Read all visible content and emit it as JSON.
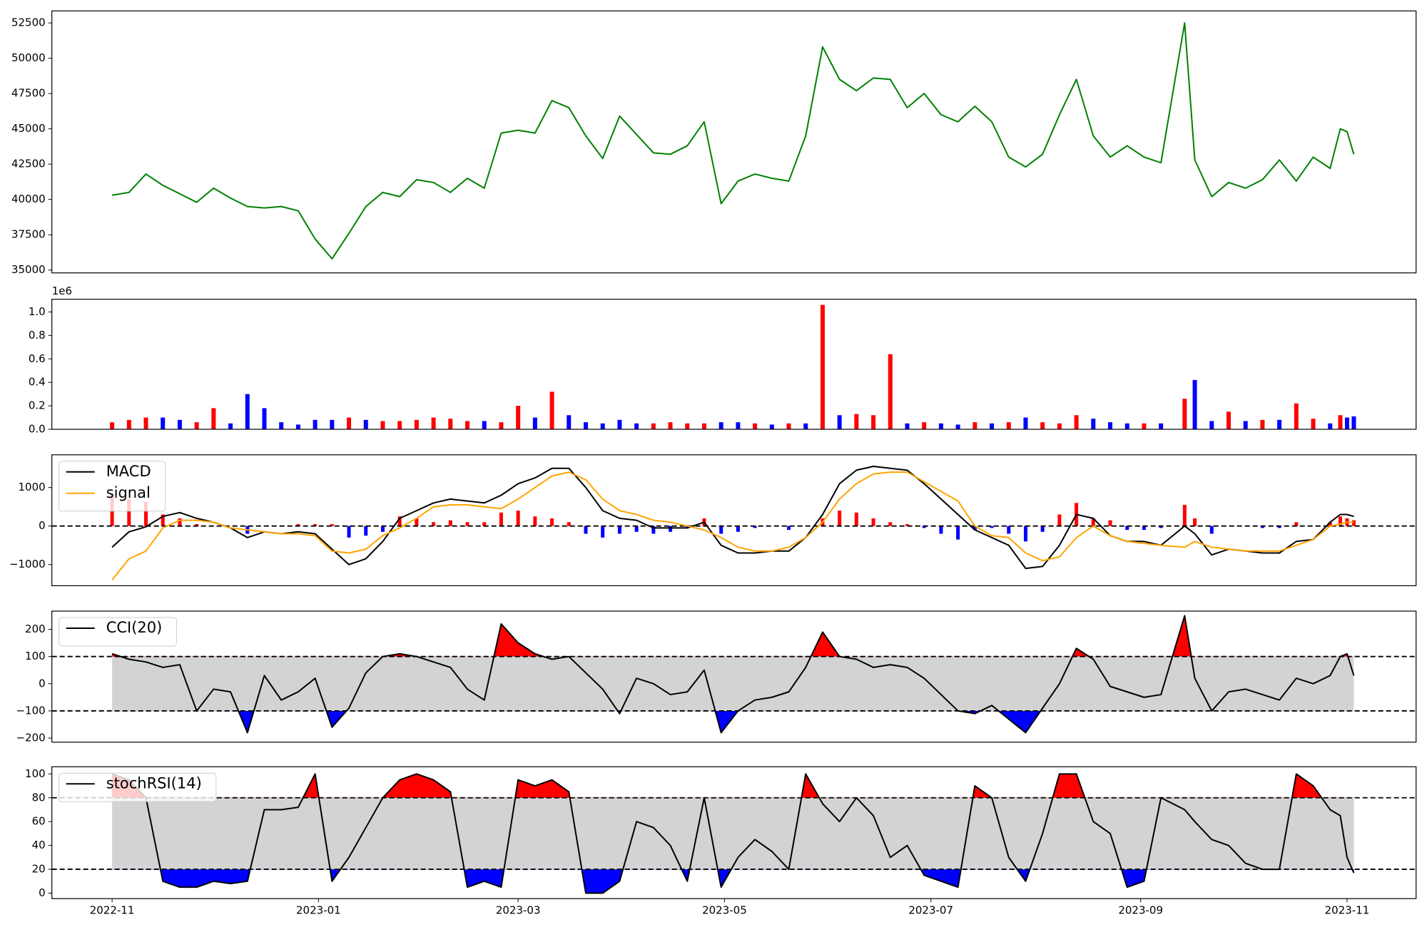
{
  "chart_data": [
    {
      "type": "line",
      "color": "green",
      "x": [
        19297,
        19302,
        19307,
        19312,
        19317,
        19322,
        19327,
        19332,
        19337,
        19342,
        19347,
        19352,
        19357,
        19362,
        19367,
        19372,
        19377,
        19382,
        19387,
        19392,
        19397,
        19402,
        19407,
        19412,
        19417,
        19422,
        19427,
        19432,
        19437,
        19442,
        19447,
        19452,
        19457,
        19462,
        19467,
        19472,
        19477,
        19482,
        19487,
        19492,
        19497,
        19502,
        19507,
        19512,
        19517,
        19522,
        19527,
        19532,
        19537,
        19542,
        19547,
        19552,
        19557,
        19562,
        19567,
        19572,
        19577,
        19582,
        19587,
        19592,
        19597,
        19602,
        19607,
        19614,
        19617,
        19622,
        19627,
        19632,
        19637,
        19642,
        19647,
        19652,
        19657,
        19660,
        19662,
        19664
      ],
      "values": [
        40300,
        40500,
        41800,
        41000,
        40400,
        39800,
        40800,
        40100,
        39500,
        39400,
        39500,
        39200,
        37200,
        35800,
        37600,
        39500,
        40500,
        40200,
        41400,
        41200,
        40500,
        41500,
        40800,
        44700,
        44900,
        44700,
        47000,
        46500,
        44500,
        42900,
        45900,
        44600,
        43300,
        43200,
        43800,
        45500,
        39700,
        41300,
        41800,
        41500,
        41300,
        44500,
        50800,
        48500,
        47700,
        48600,
        48500,
        46500,
        47500,
        46000,
        45500,
        46600,
        45500,
        43000,
        42300,
        43200,
        46000,
        48500,
        44500,
        43000,
        43800,
        43000,
        42600,
        52500,
        42800,
        40200,
        41200,
        40800,
        41400,
        42800,
        41300,
        43000,
        42200,
        45000,
        44800,
        43200
      ],
      "xlim": [
        19279.2,
        19682.4
      ],
      "ylim": [
        34800,
        53350
      ],
      "yticks": [
        35000,
        37500,
        40000,
        42500,
        45000,
        47500,
        50000,
        52500
      ]
    },
    {
      "type": "bar",
      "offset_label": "1e6",
      "x": [
        19297,
        19302,
        19307,
        19312,
        19317,
        19322,
        19327,
        19332,
        19337,
        19342,
        19347,
        19352,
        19357,
        19362,
        19367,
        19372,
        19377,
        19382,
        19387,
        19392,
        19397,
        19402,
        19407,
        19412,
        19417,
        19422,
        19427,
        19432,
        19437,
        19442,
        19447,
        19452,
        19457,
        19462,
        19467,
        19472,
        19477,
        19482,
        19487,
        19492,
        19497,
        19502,
        19507,
        19512,
        19517,
        19522,
        19527,
        19532,
        19537,
        19542,
        19547,
        19552,
        19557,
        19562,
        19567,
        19572,
        19577,
        19582,
        19587,
        19592,
        19597,
        19602,
        19607,
        19614,
        19617,
        19622,
        19627,
        19632,
        19637,
        19642,
        19647,
        19652,
        19657,
        19660,
        19662,
        19664
      ],
      "values": [
        0.06,
        0.08,
        0.1,
        0.1,
        0.08,
        0.06,
        0.18,
        0.05,
        0.3,
        0.18,
        0.06,
        0.04,
        0.08,
        0.08,
        0.1,
        0.08,
        0.07,
        0.07,
        0.08,
        0.1,
        0.09,
        0.07,
        0.07,
        0.06,
        0.2,
        0.1,
        0.32,
        0.12,
        0.06,
        0.05,
        0.08,
        0.05,
        0.05,
        0.06,
        0.05,
        0.05,
        0.06,
        0.06,
        0.05,
        0.04,
        0.05,
        0.05,
        1.06,
        0.12,
        0.13,
        0.12,
        0.64,
        0.05,
        0.06,
        0.05,
        0.04,
        0.06,
        0.05,
        0.06,
        0.1,
        0.06,
        0.05,
        0.12,
        0.09,
        0.06,
        0.05,
        0.05,
        0.05,
        0.26,
        0.42,
        0.07,
        0.15,
        0.07,
        0.08,
        0.08,
        0.22,
        0.09,
        0.05,
        0.12,
        0.1,
        0.11
      ],
      "colors": [
        "red",
        "red",
        "red",
        "blue",
        "blue",
        "red",
        "red",
        "blue",
        "blue",
        "blue",
        "blue",
        "blue",
        "blue",
        "blue",
        "red",
        "blue",
        "red",
        "red",
        "red",
        "red",
        "red",
        "red",
        "blue",
        "red",
        "red",
        "blue",
        "red",
        "blue",
        "blue",
        "blue",
        "blue",
        "blue",
        "red",
        "red",
        "red",
        "red",
        "blue",
        "blue",
        "red",
        "blue",
        "red",
        "blue",
        "red",
        "blue",
        "red",
        "red",
        "red",
        "blue",
        "red",
        "blue",
        "blue",
        "red",
        "blue",
        "red",
        "blue",
        "red",
        "red",
        "red",
        "blue",
        "blue",
        "blue",
        "red",
        "blue",
        "red",
        "blue",
        "blue",
        "red",
        "blue",
        "red",
        "blue",
        "red",
        "red",
        "blue",
        "red",
        "blue",
        "blue"
      ],
      "xlim": [
        19279.2,
        19682.4
      ],
      "ylim": [
        0,
        1.1085
      ],
      "yticks": [
        {
          "value": 0,
          "label": "0.0"
        },
        0.2,
        0.4,
        0.6,
        0.8,
        {
          "value": 1,
          "label": "1.0"
        }
      ]
    },
    {
      "type": "macd",
      "hline": 0,
      "x": [
        19297,
        19302,
        19307,
        19312,
        19317,
        19322,
        19327,
        19332,
        19337,
        19342,
        19347,
        19352,
        19357,
        19362,
        19367,
        19372,
        19377,
        19382,
        19387,
        19392,
        19397,
        19402,
        19407,
        19412,
        19417,
        19422,
        19427,
        19432,
        19437,
        19442,
        19447,
        19452,
        19457,
        19462,
        19467,
        19472,
        19477,
        19482,
        19487,
        19492,
        19497,
        19502,
        19507,
        19512,
        19517,
        19522,
        19527,
        19532,
        19537,
        19542,
        19547,
        19552,
        19557,
        19562,
        19567,
        19572,
        19577,
        19582,
        19587,
        19592,
        19597,
        19602,
        19607,
        19614,
        19617,
        19622,
        19627,
        19632,
        19637,
        19642,
        19647,
        19652,
        19657,
        19660,
        19662,
        19664
      ],
      "series": [
        {
          "name": "MACD",
          "color": "black",
          "values": [
            -550,
            -150,
            -20,
            250,
            350,
            200,
            100,
            -50,
            -300,
            -150,
            -200,
            -150,
            -200,
            -600,
            -1000,
            -850,
            -400,
            200,
            400,
            600,
            700,
            650,
            600,
            800,
            1100,
            1250,
            1500,
            1500,
            1000,
            400,
            200,
            150,
            -50,
            -50,
            -50,
            100,
            -500,
            -700,
            -700,
            -650,
            -650,
            -300,
            300,
            1100,
            1450,
            1550,
            1500,
            1450,
            1100,
            700,
            300,
            -100,
            -300,
            -500,
            -1100,
            -1050,
            -500,
            300,
            200,
            -250,
            -400,
            -400,
            -500,
            0,
            -200,
            -750,
            -600,
            -650,
            -700,
            -700,
            -400,
            -350,
            100,
            300,
            300,
            250
          ]
        },
        {
          "name": "signal",
          "color": "orange",
          "values": [
            -1400,
            -850,
            -650,
            -50,
            150,
            150,
            100,
            -50,
            -100,
            -150,
            -200,
            -200,
            -250,
            -650,
            -700,
            -600,
            -250,
            -50,
            200,
            500,
            550,
            550,
            500,
            450,
            700,
            1000,
            1300,
            1400,
            1200,
            700,
            400,
            300,
            150,
            100,
            0,
            -100,
            -300,
            -550,
            -650,
            -650,
            -550,
            -300,
            100,
            700,
            1100,
            1350,
            1400,
            1400,
            1150,
            900,
            650,
            0,
            -250,
            -300,
            -700,
            -900,
            -800,
            -300,
            0,
            -250,
            -400,
            -450,
            -500,
            -550,
            -400,
            -550,
            -600,
            -650,
            -650,
            -650,
            -500,
            -350,
            0,
            50,
            100,
            100
          ]
        }
      ],
      "histogram": {
        "pos_color": "red",
        "neg_color": "blue",
        "values": [
          850,
          700,
          630,
          300,
          200,
          50,
          0,
          0,
          -200,
          0,
          0,
          50,
          50,
          50,
          -300,
          -250,
          -150,
          250,
          200,
          100,
          150,
          100,
          100,
          350,
          400,
          250,
          200,
          100,
          -200,
          -300,
          -200,
          -150,
          -200,
          -150,
          -50,
          200,
          -200,
          -150,
          -50,
          0,
          -100,
          0,
          200,
          400,
          350,
          200,
          100,
          50,
          -50,
          -200,
          -350,
          -100,
          -50,
          -200,
          -400,
          -150,
          300,
          600,
          200,
          150,
          -100,
          -100,
          -50,
          550,
          200,
          -200,
          0,
          0,
          -50,
          -50,
          100,
          0,
          100,
          250,
          200,
          150
        ]
      },
      "xlim": [
        19279.2,
        19682.4
      ],
      "ylim": [
        -1550,
        1850
      ],
      "yticks": [
        {
          "value": -1000,
          "label": "−1000"
        },
        0,
        1000
      ]
    },
    {
      "type": "oscillator",
      "upper": 100,
      "lower": -100,
      "band_color": "lightgray",
      "above_color": "red",
      "below_color": "blue",
      "x": [
        19297,
        19302,
        19307,
        19312,
        19317,
        19322,
        19327,
        19332,
        19337,
        19342,
        19347,
        19352,
        19357,
        19362,
        19367,
        19372,
        19377,
        19382,
        19387,
        19392,
        19397,
        19402,
        19407,
        19412,
        19417,
        19422,
        19427,
        19432,
        19437,
        19442,
        19447,
        19452,
        19457,
        19462,
        19467,
        19472,
        19477,
        19482,
        19487,
        19492,
        19497,
        19502,
        19507,
        19512,
        19517,
        19522,
        19527,
        19532,
        19537,
        19542,
        19547,
        19552,
        19557,
        19562,
        19567,
        19572,
        19577,
        19582,
        19587,
        19592,
        19597,
        19602,
        19607,
        19614,
        19617,
        19622,
        19627,
        19632,
        19637,
        19642,
        19647,
        19652,
        19657,
        19660,
        19662,
        19664
      ],
      "series": [
        {
          "name": "CCI(20)",
          "color": "black",
          "values": [
            110,
            90,
            80,
            60,
            70,
            -100,
            -20,
            -30,
            -180,
            30,
            -60,
            -30,
            20,
            -160,
            -90,
            40,
            100,
            110,
            100,
            80,
            60,
            -20,
            -60,
            220,
            150,
            110,
            90,
            100,
            40,
            -20,
            -110,
            20,
            0,
            -40,
            -30,
            50,
            -180,
            -100,
            -60,
            -50,
            -30,
            60,
            190,
            100,
            90,
            60,
            70,
            60,
            20,
            -40,
            -100,
            -110,
            -80,
            -130,
            -180,
            -90,
            0,
            130,
            90,
            -10,
            -30,
            -50,
            -40,
            250,
            20,
            -100,
            -30,
            -20,
            -40,
            -60,
            20,
            0,
            30,
            100,
            110,
            30
          ]
        }
      ],
      "xlim": [
        19279.2,
        19682.4
      ],
      "ylim": [
        -215,
        267
      ],
      "yticks": [
        {
          "value": -200,
          "label": "−200"
        },
        {
          "value": -100,
          "label": "−100"
        },
        0,
        100,
        200
      ]
    },
    {
      "type": "oscillator",
      "upper": 80,
      "lower": 20,
      "band_color": "lightgray",
      "above_color": "red",
      "below_color": "blue",
      "x": [
        19297,
        19302,
        19307,
        19312,
        19317,
        19322,
        19327,
        19332,
        19337,
        19342,
        19347,
        19352,
        19357,
        19362,
        19367,
        19372,
        19377,
        19382,
        19387,
        19392,
        19397,
        19402,
        19407,
        19412,
        19417,
        19422,
        19427,
        19432,
        19437,
        19442,
        19447,
        19452,
        19457,
        19462,
        19467,
        19472,
        19477,
        19482,
        19487,
        19492,
        19497,
        19502,
        19507,
        19512,
        19517,
        19522,
        19527,
        19532,
        19537,
        19542,
        19547,
        19552,
        19557,
        19562,
        19567,
        19572,
        19577,
        19582,
        19587,
        19592,
        19597,
        19602,
        19607,
        19614,
        19617,
        19622,
        19627,
        19632,
        19637,
        19642,
        19647,
        19652,
        19657,
        19660,
        19662,
        19664
      ],
      "series": [
        {
          "name": "stochRSI(14)",
          "color": "black",
          "values": [
            100,
            95,
            80,
            10,
            5,
            5,
            10,
            8,
            10,
            70,
            70,
            72,
            100,
            10,
            30,
            55,
            80,
            95,
            100,
            95,
            85,
            5,
            10,
            5,
            95,
            90,
            95,
            85,
            0,
            0,
            10,
            60,
            55,
            40,
            10,
            80,
            5,
            30,
            45,
            35,
            20,
            100,
            75,
            60,
            80,
            65,
            30,
            40,
            15,
            10,
            5,
            90,
            80,
            30,
            10,
            50,
            100,
            100,
            60,
            50,
            5,
            10,
            80,
            70,
            60,
            45,
            40,
            25,
            20,
            20,
            100,
            90,
            70,
            65,
            30,
            17
          ]
        }
      ],
      "xlim": [
        19279.2,
        19682.4
      ],
      "ylim": [
        -4.6,
        106
      ],
      "yticks": [
        0,
        20,
        40,
        60,
        80,
        100
      ],
      "xticks": [
        {
          "value": 19297,
          "label": "2022-11"
        },
        {
          "value": 19358,
          "label": "2023-01"
        },
        {
          "value": 19417,
          "label": "2023-03"
        },
        {
          "value": 19478,
          "label": "2023-05"
        },
        {
          "value": 19539,
          "label": "2023-07"
        },
        {
          "value": 19601,
          "label": "2023-09"
        },
        {
          "value": 19662,
          "label": "2023-11"
        }
      ]
    }
  ]
}
